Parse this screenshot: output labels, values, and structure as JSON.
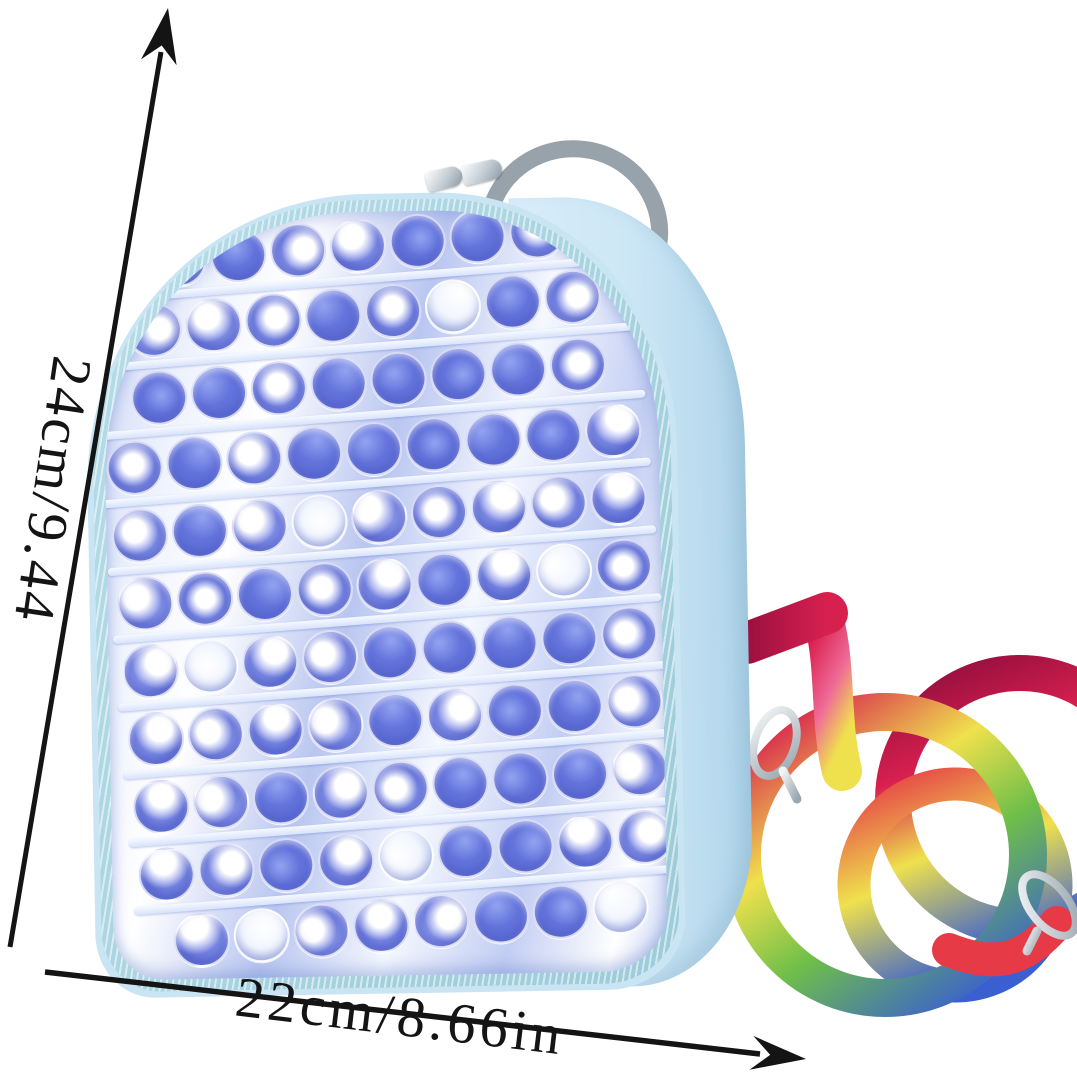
{
  "annotations": {
    "height_label": "24cm/9.44",
    "width_label": "22cm/8.66in",
    "arrow_color": "#141414"
  },
  "backpack": {
    "body_color": "#c9e5f4",
    "body_shade": "#abd1e7",
    "zipper_color": "#a6d4e0",
    "handle_color": "#98a2aa",
    "bubble_blue": "#5d6cd6",
    "bubble_blue_light": "#93a3f0",
    "bubble_white": "#f2f6fe",
    "popit_rows": [
      "mbmmbbm",
      "mmmbmwbm",
      "bbmbbbbm",
      "mbmbbbbbm",
      "mbmwmmmmm",
      "mmbmmbmwm",
      "mwmmbbbbm",
      "mmmmbmbbm",
      "mmbmmbbbm",
      "mmbmwbbmm",
      "mwmmmbbw"
    ]
  },
  "strap": {
    "maroon": "#9b1040",
    "crimson": "#d8204f",
    "pink": "#ef6a97",
    "yellow": "#efe14d",
    "green": "#6fbf49",
    "blue": "#3a5fd0",
    "red": "#e63b47",
    "clip_silver_light": "#f2f5f7",
    "clip_silver_dark": "#9aa5ae"
  }
}
